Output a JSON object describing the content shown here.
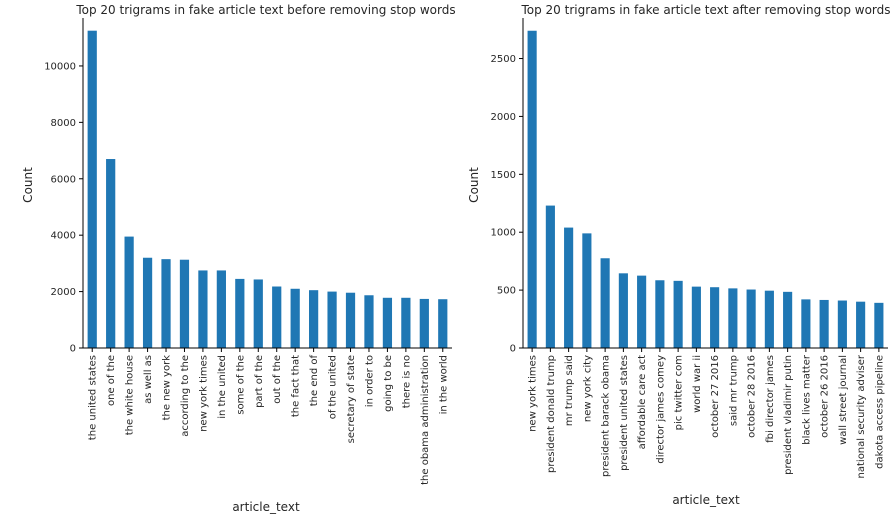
{
  "bar_color": "#1f77b4",
  "chart_data": [
    {
      "type": "bar",
      "title": "Top 20 trigrams in fake article text before removing stop words",
      "xlabel": "article_text",
      "ylabel": "Count",
      "ylim": [
        0,
        11700
      ],
      "yticks": [
        0,
        2000,
        4000,
        6000,
        8000,
        10000
      ],
      "grid": false,
      "categories": [
        "the united states",
        "one of the",
        "the white house",
        "as well as",
        "the new york",
        "according to the",
        "new york times",
        "in the united",
        "some of the",
        "part of the",
        "out of the",
        "the fact that",
        "the end of",
        "of the united",
        "secretary of state",
        "in order to",
        "going to be",
        "there is no",
        "the obama administration",
        "in the world"
      ],
      "values": [
        11250,
        6700,
        3950,
        3200,
        3150,
        3130,
        2750,
        2750,
        2450,
        2430,
        2180,
        2100,
        2050,
        2000,
        1960,
        1870,
        1780,
        1780,
        1740,
        1730
      ]
    },
    {
      "type": "bar",
      "title": "Top 20 trigrams in fake article text after removing stop words",
      "xlabel": "article_text",
      "ylabel": "Count",
      "ylim": [
        0,
        2850
      ],
      "yticks": [
        0,
        500,
        1000,
        1500,
        2000,
        2500
      ],
      "grid": false,
      "categories": [
        "new york times",
        "president donald trump",
        "mr trump said",
        "new york city",
        "president barack obama",
        "president united states",
        "affordable care act",
        "director james comey",
        "pic twitter com",
        "world war ii",
        "october 27 2016",
        "said mr trump",
        "october 28 2016",
        "fbi director james",
        "president vladimir putin",
        "black lives matter",
        "october 26 2016",
        "wall street journal",
        "national security adviser",
        "dakota access pipeline"
      ],
      "values": [
        2740,
        1230,
        1040,
        990,
        775,
        645,
        625,
        585,
        580,
        530,
        525,
        515,
        505,
        495,
        485,
        420,
        415,
        410,
        400,
        390
      ]
    }
  ]
}
